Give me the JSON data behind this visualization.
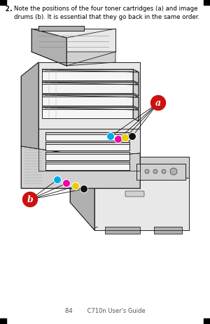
{
  "background_color": "#ffffff",
  "step_number": "2.",
  "step_text": "Note the positions of the four toner cartridges (a) and image\ndrums (b). It is essential that they go back in the same order.",
  "label_a": "a",
  "label_b": "b",
  "label_color": "#cc1111",
  "dot_colors_a": [
    "#00aaee",
    "#ee00aa",
    "#eecc00",
    "#111111"
  ],
  "dot_colors_b": [
    "#00aaee",
    "#ee00aa",
    "#eecc00",
    "#111111"
  ],
  "footer_text": "84        C710n User's Guide",
  "figsize": [
    3.0,
    4.64
  ],
  "dpi": 100,
  "line_color": "#222222",
  "lw": 0.6,
  "fill_light": "#e8e8e8",
  "fill_mid": "#d0d0d0",
  "fill_dark": "#b0b0b0",
  "fill_white": "#f5f5f5"
}
